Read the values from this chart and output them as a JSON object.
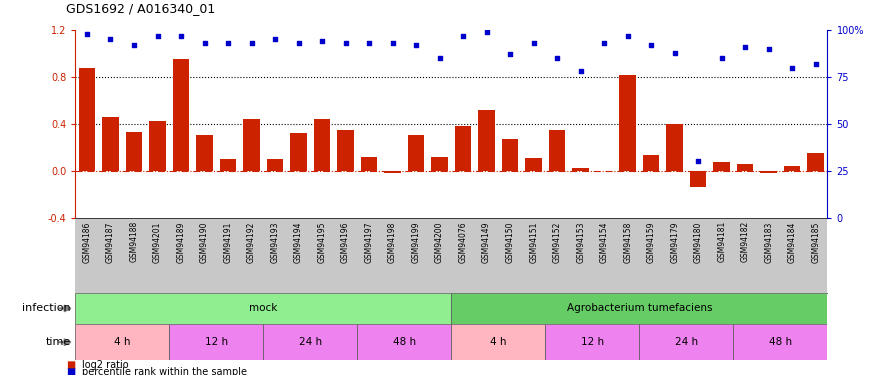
{
  "title": "GDS1692 / A016340_01",
  "samples": [
    "GSM94186",
    "GSM94187",
    "GSM94188",
    "GSM94201",
    "GSM94189",
    "GSM94190",
    "GSM94191",
    "GSM94192",
    "GSM94193",
    "GSM94194",
    "GSM94195",
    "GSM94196",
    "GSM94197",
    "GSM94198",
    "GSM94199",
    "GSM94200",
    "GSM94076",
    "GSM94149",
    "GSM94150",
    "GSM94151",
    "GSM94152",
    "GSM94153",
    "GSM94154",
    "GSM94158",
    "GSM94159",
    "GSM94179",
    "GSM94180",
    "GSM94181",
    "GSM94182",
    "GSM94183",
    "GSM94184",
    "GSM94185"
  ],
  "log2_ratio": [
    0.88,
    0.46,
    0.33,
    0.42,
    0.95,
    0.3,
    0.1,
    0.44,
    0.1,
    0.32,
    0.44,
    0.35,
    0.12,
    -0.02,
    0.3,
    0.12,
    0.38,
    0.52,
    0.27,
    0.11,
    0.35,
    0.02,
    0.0,
    0.82,
    0.13,
    0.4,
    -0.14,
    0.07,
    0.06,
    -0.02,
    0.04,
    0.15
  ],
  "percentile_rank": [
    98,
    95,
    92,
    97,
    97,
    93,
    93,
    93,
    95,
    93,
    94,
    93,
    93,
    93,
    92,
    85,
    97,
    99,
    87,
    93,
    85,
    78,
    93,
    97,
    92,
    88,
    30,
    85,
    91,
    90,
    80,
    82
  ],
  "time_colors": [
    "#FFB6C1",
    "#EE82EE",
    "#EE82EE",
    "#EE82EE",
    "#FFB6C1",
    "#EE82EE",
    "#EE82EE",
    "#EE82EE"
  ],
  "time_labels": [
    "4 h",
    "12 h",
    "24 h",
    "48 h",
    "4 h",
    "12 h",
    "24 h",
    "48 h"
  ],
  "time_starts": [
    0,
    4,
    8,
    12,
    16,
    20,
    24,
    28
  ],
  "time_ends": [
    4,
    8,
    12,
    16,
    20,
    24,
    28,
    32
  ],
  "infection_colors": [
    "#90EE90",
    "#66CC66"
  ],
  "infection_labels": [
    "mock",
    "Agrobacterium tumefaciens"
  ],
  "infection_starts": [
    0,
    16
  ],
  "infection_ends": [
    16,
    32
  ],
  "ylim_left": [
    -0.4,
    1.2
  ],
  "ylim_right": [
    0,
    100
  ],
  "yticks_left": [
    -0.4,
    0.0,
    0.4,
    0.8,
    1.2
  ],
  "yticks_right": [
    0,
    25,
    50,
    75,
    100
  ],
  "bar_color": "#CC2200",
  "dot_color": "#0000CC",
  "hline_color": "#CC2200",
  "bg_color": "#ffffff",
  "grid_color": "#d3d3d3",
  "xlabels_bg": "#c8c8c8"
}
